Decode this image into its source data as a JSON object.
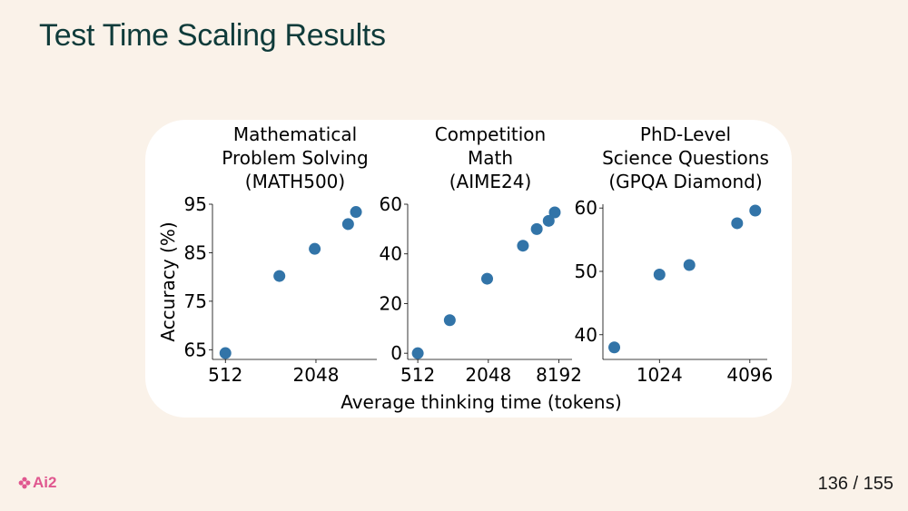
{
  "slide": {
    "title": "Test Time Scaling Results",
    "page_number": "136 / 155",
    "logo_text": "Ai2",
    "accent_color": "#e0578f",
    "title_color": "#0f3b3a"
  },
  "chart_data": [
    {
      "type": "scatter",
      "title": [
        "Mathematical",
        "Problem Solving",
        "(MATH500)"
      ],
      "ylabel": "Accuracy (%)",
      "xscale": "log2",
      "xticks": [
        512,
        2048
      ],
      "xtick_labels": [
        "512",
        "2048"
      ],
      "yticks": [
        65,
        75,
        85,
        95
      ],
      "ytick_labels": [
        "65",
        "75",
        "85",
        "95"
      ],
      "xlim": [
        420,
        5200
      ],
      "ylim": [
        63,
        95
      ],
      "color": "#3274a8",
      "points": [
        {
          "x": 512,
          "y": 64.3
        },
        {
          "x": 1170,
          "y": 80.2
        },
        {
          "x": 2010,
          "y": 85.8
        },
        {
          "x": 3350,
          "y": 90.9
        },
        {
          "x": 3780,
          "y": 93.4
        }
      ]
    },
    {
      "type": "scatter",
      "title": [
        "Competition",
        "Math",
        "(AIME24)"
      ],
      "ylabel": "",
      "xscale": "log2",
      "xticks": [
        512,
        2048,
        8192
      ],
      "xtick_labels": [
        "512",
        "2048",
        "8192"
      ],
      "yticks": [
        0,
        20,
        40,
        60
      ],
      "ytick_labels": [
        "0",
        "20",
        "40",
        "60"
      ],
      "xlim": [
        420,
        10600
      ],
      "ylim": [
        -2.5,
        60
      ],
      "color": "#3274a8",
      "points": [
        {
          "x": 512,
          "y": 0
        },
        {
          "x": 960,
          "y": 13.3
        },
        {
          "x": 2000,
          "y": 30
        },
        {
          "x": 4040,
          "y": 43.3
        },
        {
          "x": 5300,
          "y": 50
        },
        {
          "x": 6700,
          "y": 53.3
        },
        {
          "x": 7550,
          "y": 56.7
        }
      ]
    },
    {
      "type": "scatter",
      "title": [
        "PhD-Level",
        "Science Questions",
        "(GPQA Diamond)"
      ],
      "ylabel": "",
      "xscale": "log2",
      "xticks": [
        1024,
        4096
      ],
      "xtick_labels": [
        "1024",
        "4096"
      ],
      "yticks": [
        40,
        50,
        60
      ],
      "ytick_labels": [
        "40",
        "50",
        "60"
      ],
      "xlim": [
        430,
        5350
      ],
      "ylim": [
        36.1,
        60.6
      ],
      "color": "#3274a8",
      "points": [
        {
          "x": 512,
          "y": 38
        },
        {
          "x": 1024,
          "y": 49.5
        },
        {
          "x": 1620,
          "y": 51
        },
        {
          "x": 3370,
          "y": 57.6
        },
        {
          "x": 4450,
          "y": 59.6
        }
      ]
    }
  ],
  "shared_xlabel": "Average thinking time (tokens)"
}
